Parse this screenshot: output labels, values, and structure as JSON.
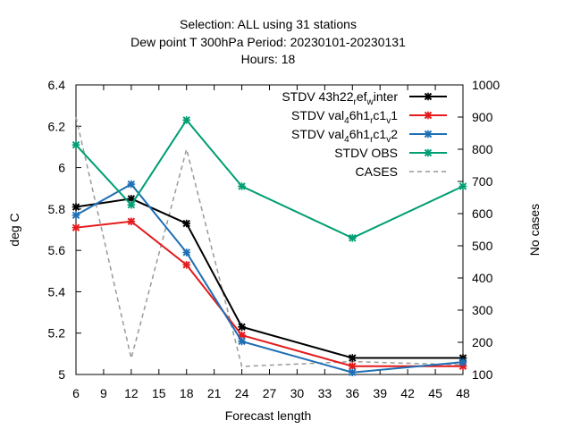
{
  "chart_data": {
    "type": "line",
    "title_lines": [
      "Selection: ALL using    31 stations",
      "Dew point T 300hPa   Period: 20230101-20230131",
      "Hours:  18"
    ],
    "xlabel": "Forecast length",
    "ylabel": "deg C",
    "y2label": "No cases",
    "xlim": [
      6,
      48
    ],
    "ylim": [
      5,
      6.4
    ],
    "y2lim": [
      100,
      1000
    ],
    "xticks": [
      6,
      9,
      12,
      15,
      18,
      21,
      24,
      27,
      30,
      33,
      36,
      39,
      42,
      45,
      48
    ],
    "yticks": [
      "5",
      "5.2",
      "5.4",
      "5.6",
      "5.8",
      "6",
      "6.2",
      "6.4"
    ],
    "y2ticks": [
      100,
      200,
      300,
      400,
      500,
      600,
      700,
      800,
      900,
      1000
    ],
    "grid": false,
    "legend_position": "top-right",
    "x": [
      6,
      12,
      18,
      24,
      36,
      48
    ],
    "series": [
      {
        "name": "STDV 43h22_ref_winter",
        "label_html": [
          "STDV 43h22",
          "r",
          "ef",
          "w",
          "inter"
        ],
        "color": "#000000",
        "axis": "y1",
        "values": [
          5.81,
          5.85,
          5.73,
          5.23,
          5.08,
          5.08
        ]
      },
      {
        "name": "STDV val_46h1_rc1_v1",
        "label_html": [
          "STDV val",
          "4",
          "6h1",
          "r",
          "c1",
          "v",
          "1"
        ],
        "color": "#e41a1c",
        "axis": "y1",
        "values": [
          5.71,
          5.74,
          5.53,
          5.19,
          5.04,
          5.04
        ]
      },
      {
        "name": "STDV val_46h1_rc1_v2",
        "label_html": [
          "STDV val",
          "4",
          "6h1",
          "r",
          "c1",
          "v",
          "2"
        ],
        "color": "#1f6fb4",
        "axis": "y1",
        "values": [
          5.77,
          5.92,
          5.59,
          5.16,
          5.01,
          5.06
        ]
      },
      {
        "name": "STDV OBS",
        "color": "#009e73",
        "axis": "y1",
        "values": [
          6.11,
          5.82,
          6.23,
          5.91,
          5.66,
          5.91
        ]
      },
      {
        "name": "CASES",
        "color": "#999999",
        "axis": "y2",
        "dashed": true,
        "values": [
          900,
          150,
          800,
          125,
          140,
          130
        ]
      }
    ]
  }
}
